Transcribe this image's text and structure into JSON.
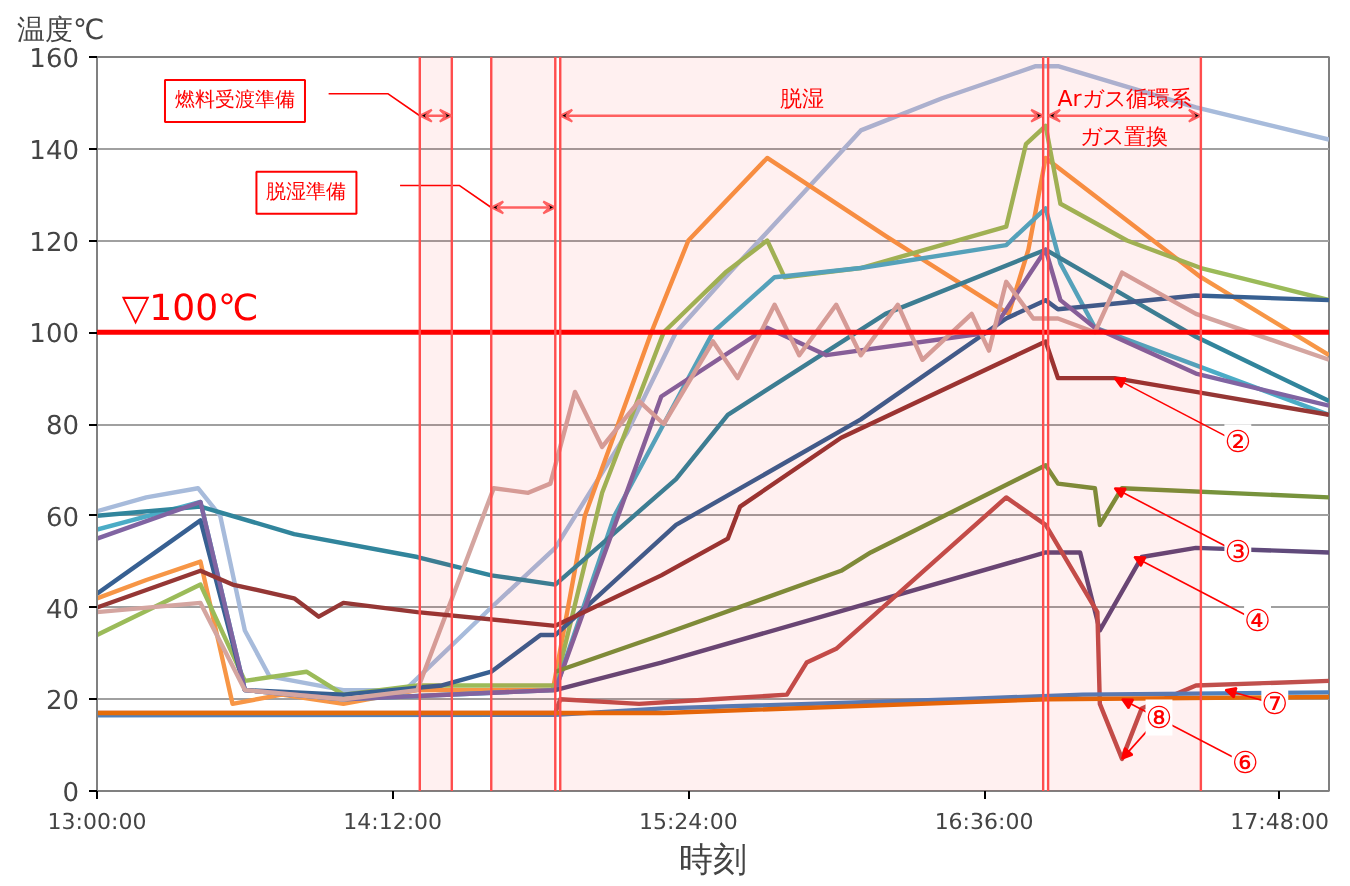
{
  "chart_data": {
    "type": "line",
    "xlabel": "時刻",
    "ylabel": "温度℃",
    "xlim": [
      13,
      18
    ],
    "ylim": [
      0,
      160
    ],
    "xticks": [
      {
        "value": 13,
        "label": "13:00:00"
      },
      {
        "value": 14.2,
        "label": "14:12:00"
      },
      {
        "value": 15.4,
        "label": "15:24:00"
      },
      {
        "value": 16.6,
        "label": "16:36:00"
      },
      {
        "value": 17.8,
        "label": "17:48:00"
      }
    ],
    "yticks": [
      0,
      20,
      40,
      60,
      80,
      100,
      120,
      140,
      160
    ],
    "grid": "y",
    "line_style": "solid",
    "series": [
      {
        "color": "#a7bbdb",
        "x": [
          13.0,
          13.2,
          13.41,
          13.5,
          13.6,
          13.7,
          14.0,
          14.25,
          14.6,
          14.86,
          15.15,
          15.35,
          15.55,
          15.74,
          16.1,
          16.43,
          16.81,
          16.9,
          17.46,
          18.0
        ],
        "values": [
          61,
          64,
          66,
          60,
          35,
          25,
          22,
          22,
          40,
          53,
          78,
          100,
          112,
          123,
          144,
          151,
          158,
          158,
          149,
          142
        ]
      },
      {
        "color": "#f79646",
        "x": [
          13.0,
          13.2,
          13.42,
          13.55,
          13.75,
          14.0,
          14.3,
          14.85,
          14.98,
          15.25,
          15.4,
          15.72,
          16.2,
          16.7,
          16.78,
          16.85,
          17.48,
          18.0
        ],
        "values": [
          42,
          46,
          50,
          19,
          21,
          19,
          22,
          22,
          60,
          100,
          120,
          138,
          121,
          104,
          118,
          138,
          112,
          95
        ]
      },
      {
        "color": "#9bbb59",
        "x": [
          13.0,
          13.42,
          13.6,
          13.85,
          14.0,
          14.3,
          14.86,
          15.05,
          15.3,
          15.55,
          15.72,
          15.79,
          16.1,
          16.69,
          16.77,
          16.85,
          16.91,
          17.18,
          17.48,
          18.0
        ],
        "values": [
          34,
          45,
          24,
          26,
          21,
          23,
          23,
          65,
          100,
          113,
          120,
          112,
          114,
          123,
          141,
          145,
          128,
          120,
          114,
          107
        ]
      },
      {
        "color": "#4bacc6",
        "x": [
          13.0,
          13.42,
          13.6,
          14.0,
          14.86,
          15.1,
          15.5,
          15.75,
          16.1,
          16.69,
          16.85,
          16.91,
          17.05,
          18.0
        ],
        "values": [
          57,
          63,
          22,
          20,
          22,
          60,
          100,
          112,
          114,
          119,
          127,
          115,
          101,
          82
        ]
      },
      {
        "color": "#31859c",
        "x": [
          13.0,
          13.42,
          13.8,
          14.3,
          14.6,
          14.86,
          15.35,
          15.56,
          16.2,
          16.85,
          17.46,
          18.0
        ],
        "values": [
          60,
          62,
          56,
          51,
          47,
          45,
          68,
          82,
          104,
          118,
          99,
          85
        ]
      },
      {
        "color": "#376092",
        "x": [
          13.0,
          13.42,
          13.6,
          14.0,
          14.4,
          14.6,
          14.8,
          14.86,
          15.35,
          16.1,
          16.69,
          16.85,
          16.9,
          17.46,
          18.0
        ],
        "values": [
          43,
          59,
          22,
          21,
          23,
          26,
          34,
          34,
          58,
          81,
          103,
          107,
          105,
          108,
          107
        ]
      },
      {
        "color": "#8064a2",
        "x": [
          13.0,
          13.42,
          13.6,
          14.0,
          14.86,
          15.29,
          15.72,
          15.96,
          16.63,
          16.85,
          16.91,
          17.05,
          17.46,
          18.0
        ],
        "values": [
          55,
          63,
          22,
          20,
          22,
          86,
          101,
          95,
          100,
          118,
          107,
          101,
          91,
          84
        ]
      },
      {
        "color": "#d4a5a0",
        "x": [
          13.0,
          13.42,
          13.6,
          14.0,
          14.3,
          14.61,
          14.75,
          14.84,
          14.94,
          15.05,
          15.2,
          15.3,
          15.5,
          15.6,
          15.75,
          15.85,
          16.0,
          16.1,
          16.25,
          16.35,
          16.55,
          16.62,
          16.69,
          16.8,
          16.9,
          17.05,
          17.16,
          17.46,
          18.0
        ],
        "values": [
          39,
          41,
          22,
          20,
          22,
          66,
          65,
          67,
          87,
          75,
          85,
          80,
          98,
          90,
          106,
          95,
          106,
          95,
          106,
          94,
          104,
          96,
          111,
          103,
          103,
          100,
          113,
          104,
          94
        ]
      },
      {
        "color": "#953735",
        "x": [
          13.0,
          13.42,
          13.55,
          13.8,
          13.9,
          14.0,
          14.3,
          14.86,
          15.29,
          15.56,
          15.61,
          16.02,
          16.85,
          16.9,
          17.13,
          17.46,
          18.0
        ],
        "values": [
          40,
          48,
          45,
          42,
          38,
          41,
          39,
          36,
          47,
          55,
          62,
          77,
          98,
          90,
          90,
          87,
          82
        ]
      },
      {
        "color": "#77933c",
        "x": [
          14.86,
          15.29,
          16.02,
          16.14,
          16.85,
          16.9,
          17.05,
          17.07,
          17.16,
          18.0
        ],
        "values": [
          26,
          34,
          48,
          52,
          71,
          67,
          66,
          58,
          66,
          64
        ]
      },
      {
        "color": "#604a7b",
        "x": [
          14.86,
          15.29,
          16.85,
          16.99,
          17.07,
          17.24,
          17.46,
          18.0
        ],
        "values": [
          22,
          28,
          52,
          52,
          35,
          51,
          53,
          52
        ]
      },
      {
        "color": "#c0504d",
        "x": [
          13.0,
          14.86,
          14.88,
          15.2,
          15.5,
          15.8,
          15.88,
          16.0,
          16.69,
          16.85,
          17.06,
          17.07,
          17.16,
          17.24,
          17.46,
          18.0
        ],
        "values": [
          17,
          17,
          20,
          19,
          20,
          21,
          28,
          31,
          64,
          58,
          39,
          19,
          7,
          18,
          23,
          24
        ]
      },
      {
        "color": "#4f81bd",
        "x": [
          13.0,
          14.86,
          15.3,
          16.5,
          17.0,
          18.0
        ],
        "values": [
          16.5,
          16.6,
          18,
          20,
          21,
          21.5
        ]
      },
      {
        "color": "#e46c0a",
        "x": [
          13.0,
          15.3,
          16.86,
          18.0
        ],
        "values": [
          17,
          17,
          20,
          20.5
        ]
      }
    ],
    "ref_lines": [
      {
        "axis": "y",
        "value": 100,
        "label": "▽100℃",
        "color": "#ff0000"
      },
      {
        "axis": "x",
        "value": 14.31,
        "color": "#ff5050"
      },
      {
        "axis": "x",
        "value": 14.44,
        "color": "#ff5050"
      },
      {
        "axis": "x",
        "value": 14.6,
        "color": "#ff5050"
      },
      {
        "axis": "x",
        "value": 14.86,
        "color": "#ff5050"
      },
      {
        "axis": "x",
        "value": 14.88,
        "color": "#ff5050"
      },
      {
        "axis": "x",
        "value": 16.84,
        "color": "#ff5050"
      },
      {
        "axis": "x",
        "value": 16.86,
        "color": "#ff5050"
      },
      {
        "axis": "x",
        "value": 17.48,
        "color": "#ff5050"
      }
    ],
    "bands": [
      {
        "axis": "x",
        "from": 14.31,
        "to": 14.44,
        "label": "燃料受渡準備"
      },
      {
        "axis": "x",
        "from": 14.6,
        "to": 14.86,
        "label": "脱湿準備"
      },
      {
        "axis": "x",
        "from": 14.88,
        "to": 16.84,
        "label": "脱湿"
      },
      {
        "axis": "x",
        "from": 16.86,
        "to": 17.48,
        "label": "Arガス循環系ガス置換"
      }
    ],
    "annotations": [
      {
        "text": "②",
        "x": 17.13,
        "y": 90
      },
      {
        "text": "③",
        "x": 17.13,
        "y": 66
      },
      {
        "text": "④",
        "x": 17.21,
        "y": 51
      },
      {
        "text": "⑦",
        "x": 17.58,
        "y": 22
      },
      {
        "text": "⑥",
        "x": 17.16,
        "y": 20
      },
      {
        "text": "⑧",
        "x": 17.16,
        "y": 7
      }
    ]
  }
}
